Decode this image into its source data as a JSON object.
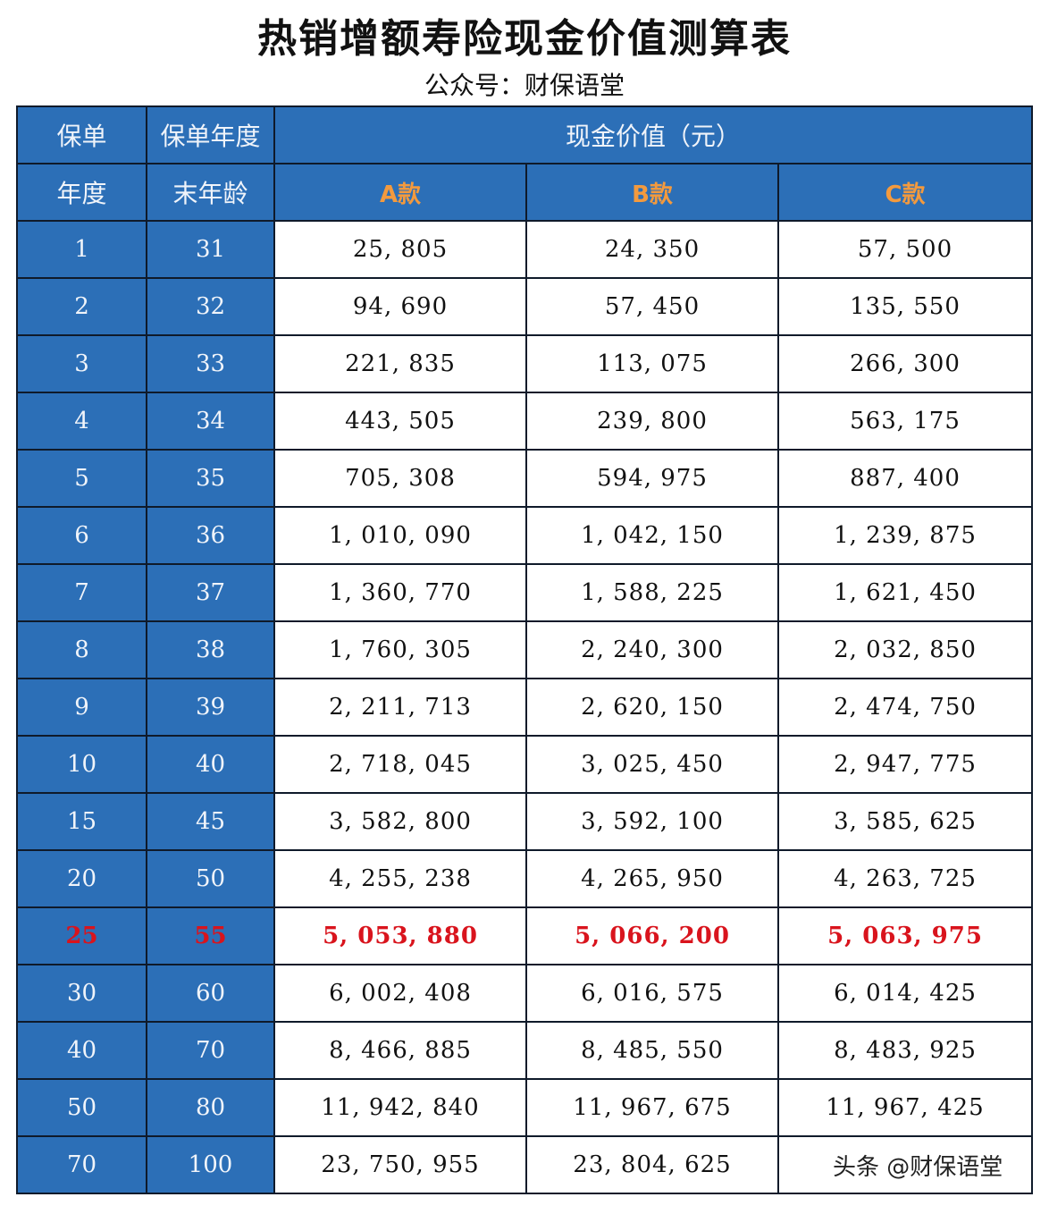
{
  "title": "热销增额寿险现金价值测算表",
  "subtitle": "公众号：财保语堂",
  "table": {
    "header": {
      "col1_line1": "保单",
      "col1_line2": "年度",
      "col2_line1": "保单年度",
      "col2_line2": "末年龄",
      "group": "现金价值（元）",
      "plans": [
        "A款",
        "B款",
        "C款"
      ]
    },
    "rows": [
      {
        "year": "1",
        "age": "31",
        "a": "25, 805",
        "b": "24, 350",
        "c": "57, 500"
      },
      {
        "year": "2",
        "age": "32",
        "a": "94, 690",
        "b": "57, 450",
        "c": "135, 550"
      },
      {
        "year": "3",
        "age": "33",
        "a": "221, 835",
        "b": "113, 075",
        "c": "266, 300"
      },
      {
        "year": "4",
        "age": "34",
        "a": "443, 505",
        "b": "239, 800",
        "c": "563, 175"
      },
      {
        "year": "5",
        "age": "35",
        "a": "705, 308",
        "b": "594, 975",
        "c": "887, 400"
      },
      {
        "year": "6",
        "age": "36",
        "a": "1, 010, 090",
        "b": "1, 042, 150",
        "c": "1, 239, 875"
      },
      {
        "year": "7",
        "age": "37",
        "a": "1, 360, 770",
        "b": "1, 588, 225",
        "c": "1, 621, 450"
      },
      {
        "year": "8",
        "age": "38",
        "a": "1, 760, 305",
        "b": "2, 240, 300",
        "c": "2, 032, 850"
      },
      {
        "year": "9",
        "age": "39",
        "a": "2, 211, 713",
        "b": "2, 620, 150",
        "c": "2, 474, 750"
      },
      {
        "year": "10",
        "age": "40",
        "a": "2, 718, 045",
        "b": "3, 025, 450",
        "c": "2, 947, 775"
      },
      {
        "year": "15",
        "age": "45",
        "a": "3, 582, 800",
        "b": "3, 592, 100",
        "c": "3, 585, 625"
      },
      {
        "year": "20",
        "age": "50",
        "a": "4, 255, 238",
        "b": "4, 265, 950",
        "c": "4, 263, 725"
      },
      {
        "year": "25",
        "age": "55",
        "a": "5, 053, 880",
        "b": "5, 066, 200",
        "c": "5, 063, 975",
        "highlight": true
      },
      {
        "year": "30",
        "age": "60",
        "a": "6, 002, 408",
        "b": "6, 016, 575",
        "c": "6, 014, 425"
      },
      {
        "year": "40",
        "age": "70",
        "a": "8, 466, 885",
        "b": "8, 485, 550",
        "c": "8, 483, 925"
      },
      {
        "year": "50",
        "age": "80",
        "a": "11, 942, 840",
        "b": "11, 967, 675",
        "c": "11, 967, 425"
      },
      {
        "year": "70",
        "age": "100",
        "a": "23, 750, 955",
        "b": "23, 804, 625",
        "c": ""
      }
    ]
  },
  "watermark": "头条 @财保语堂",
  "colors": {
    "header_blue": "#2c6fb7",
    "plan_label_orange": "#f39a3e",
    "highlight_red": "#d9141d"
  }
}
